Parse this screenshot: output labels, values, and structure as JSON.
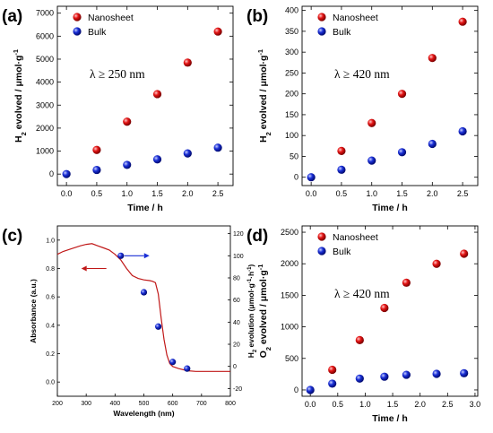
{
  "colors": {
    "nanosheet": "#e41414",
    "bulk": "#1a2fd6",
    "absorbance_line": "#c01818"
  },
  "chart_data": [
    {
      "panel": "(a)",
      "type": "scatter",
      "xlabel": "Time / h",
      "ylabel": "H2 evolved / μmol·g-1",
      "annotation": "λ ≥ 250 nm",
      "xlim": [
        -0.15,
        2.75
      ],
      "ylim": [
        -500,
        7300
      ],
      "xticks": [
        0.0,
        0.5,
        1.0,
        1.5,
        2.0,
        2.5
      ],
      "xtick_labels": [
        "0.0",
        "0.5",
        "1.0",
        "1.5",
        "2.0",
        "2.5"
      ],
      "yticks": [
        0,
        1000,
        2000,
        3000,
        4000,
        5000,
        6000,
        7000
      ],
      "ytick_labels": [
        "0",
        "1000",
        "2000",
        "3000",
        "4000",
        "5000",
        "6000",
        "7000"
      ],
      "legend": "top-left",
      "series": [
        {
          "name": "Nanosheet",
          "color": "#e41414",
          "x": [
            0.5,
            1.0,
            1.5,
            2.0,
            2.5
          ],
          "y": [
            1050,
            2280,
            3480,
            4850,
            6200
          ]
        },
        {
          "name": "Bulk",
          "color": "#1a2fd6",
          "x": [
            0.0,
            0.5,
            1.0,
            1.5,
            2.0,
            2.5
          ],
          "y": [
            0,
            180,
            400,
            640,
            900,
            1150
          ]
        }
      ]
    },
    {
      "panel": "(b)",
      "type": "scatter",
      "xlabel": "Time / h",
      "ylabel": "H2 evolved / μmol·g-1",
      "annotation": "λ ≥ 420 nm",
      "xlim": [
        -0.15,
        2.75
      ],
      "ylim": [
        -20,
        410
      ],
      "xticks": [
        0.0,
        0.5,
        1.0,
        1.5,
        2.0,
        2.5
      ],
      "xtick_labels": [
        "0.0",
        "0.5",
        "1.0",
        "1.5",
        "2.0",
        "2.5"
      ],
      "yticks": [
        0,
        50,
        100,
        150,
        200,
        250,
        300,
        350,
        400
      ],
      "ytick_labels": [
        "0",
        "50",
        "100",
        "150",
        "200",
        "250",
        "300",
        "350",
        "400"
      ],
      "legend": "top-left",
      "series": [
        {
          "name": "Nanosheet",
          "color": "#e41414",
          "x": [
            0.5,
            1.0,
            1.5,
            2.0,
            2.5
          ],
          "y": [
            63,
            130,
            200,
            286,
            373
          ]
        },
        {
          "name": "Bulk",
          "color": "#1a2fd6",
          "x": [
            0.0,
            0.5,
            1.0,
            1.5,
            2.0,
            2.5
          ],
          "y": [
            0,
            18,
            40,
            60,
            80,
            110
          ]
        }
      ]
    },
    {
      "panel": "(c)",
      "type": "line",
      "xlabel": "Wavelength (nm)",
      "ylabel": "Absorbance (a.u.)",
      "y2label": "H2 evolution (μmol·g-1·h-1)",
      "xlim": [
        200,
        800
      ],
      "ylim": [
        -0.1,
        1.1
      ],
      "y2lim": [
        -27,
        127
      ],
      "xticks": [
        200,
        300,
        400,
        500,
        600,
        700,
        800
      ],
      "xtick_labels": [
        "200",
        "300",
        "400",
        "500",
        "600",
        "700",
        "800"
      ],
      "yticks": [
        0.0,
        0.2,
        0.4,
        0.6,
        0.8,
        1.0
      ],
      "ytick_labels": [
        "0.0",
        "0.2",
        "0.4",
        "0.6",
        "0.8",
        "1.0"
      ],
      "y2ticks": [
        -20,
        0,
        20,
        40,
        60,
        80,
        100,
        120
      ],
      "y2tick_labels": [
        "-20",
        "0",
        "20",
        "40",
        "60",
        "80",
        "100",
        "120"
      ],
      "absorbance": {
        "x": [
          200,
          220,
          250,
          280,
          300,
          320,
          340,
          360,
          380,
          400,
          420,
          440,
          460,
          480,
          500,
          520,
          530,
          540,
          550,
          560,
          570,
          580,
          590,
          600,
          620,
          650,
          680,
          700,
          750,
          800
        ],
        "y": [
          0.9,
          0.92,
          0.94,
          0.96,
          0.97,
          0.975,
          0.96,
          0.945,
          0.93,
          0.9,
          0.86,
          0.8,
          0.75,
          0.73,
          0.72,
          0.715,
          0.71,
          0.7,
          0.62,
          0.45,
          0.3,
          0.19,
          0.13,
          0.11,
          0.095,
          0.08,
          0.075,
          0.075,
          0.075,
          0.075
        ]
      },
      "h2_evolution": {
        "x": [
          420,
          500,
          550,
          600,
          650
        ],
        "y": [
          100,
          67,
          36,
          4,
          -2
        ]
      }
    },
    {
      "panel": "(d)",
      "type": "scatter",
      "xlabel": "Time / h",
      "ylabel": "O2 evolved / μmol·g-1",
      "annotation": "λ ≥ 420 nm",
      "xlim": [
        -0.15,
        3.05
      ],
      "ylim": [
        -100,
        2600
      ],
      "xticks": [
        0.0,
        0.5,
        1.0,
        1.5,
        2.0,
        2.5,
        3.0
      ],
      "xtick_labels": [
        "0.0",
        "0.5",
        "1.0",
        "1.5",
        "2.0",
        "2.5",
        "3.0"
      ],
      "yticks": [
        0,
        500,
        1000,
        1500,
        2000,
        2500
      ],
      "ytick_labels": [
        "0",
        "500",
        "1000",
        "1500",
        "2000",
        "2500"
      ],
      "legend": "top-left",
      "series": [
        {
          "name": "Nanosheet",
          "color": "#e41414",
          "x": [
            0.4,
            0.9,
            1.35,
            1.75,
            2.3,
            2.8
          ],
          "y": [
            320,
            790,
            1300,
            1700,
            2000,
            2160
          ]
        },
        {
          "name": "Bulk",
          "color": "#1a2fd6",
          "x": [
            0.0,
            0.4,
            0.9,
            1.35,
            1.75,
            2.3,
            2.8
          ],
          "y": [
            0,
            100,
            180,
            210,
            240,
            255,
            265
          ]
        }
      ]
    }
  ]
}
